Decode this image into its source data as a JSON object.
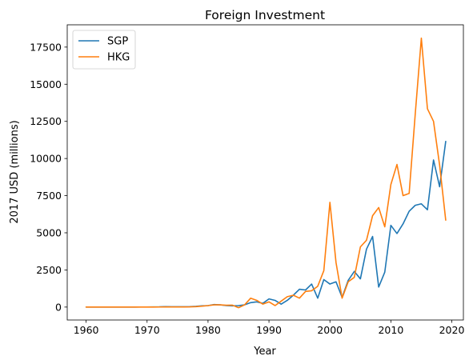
{
  "chart_data": {
    "type": "line",
    "title": "Foreign Investment",
    "xlabel": "Year",
    "ylabel": "2017 USD (millions)",
    "xlim": [
      1956.9,
      2021.9
    ],
    "ylim": [
      -870,
      19000
    ],
    "x_ticks": [
      1960,
      1970,
      1980,
      1990,
      2000,
      2010,
      2020
    ],
    "y_ticks": [
      0,
      2500,
      5000,
      7500,
      10000,
      12500,
      15000,
      17500
    ],
    "grid": false,
    "legend_position": "top-left",
    "x": [
      1960,
      1961,
      1962,
      1963,
      1964,
      1965,
      1966,
      1967,
      1968,
      1969,
      1970,
      1971,
      1972,
      1973,
      1974,
      1975,
      1976,
      1977,
      1978,
      1979,
      1980,
      1981,
      1982,
      1983,
      1984,
      1985,
      1986,
      1987,
      1988,
      1989,
      1990,
      1991,
      1992,
      1993,
      1994,
      1995,
      1996,
      1997,
      1998,
      1999,
      2000,
      2001,
      2002,
      2003,
      2004,
      2005,
      2006,
      2007,
      2008,
      2009,
      2010,
      2011,
      2012,
      2013,
      2014,
      2015,
      2016,
      2017,
      2018,
      2019
    ],
    "series": [
      {
        "name": "SGP",
        "color": "#1f77b4",
        "values": [
          0,
          0,
          0,
          0,
          0,
          0,
          0,
          0,
          0,
          5,
          5,
          10,
          15,
          30,
          20,
          25,
          20,
          30,
          50,
          80,
          100,
          170,
          150,
          100,
          80,
          100,
          150,
          300,
          350,
          250,
          550,
          450,
          200,
          450,
          800,
          1200,
          1150,
          1550,
          600,
          1850,
          1550,
          1700,
          650,
          1800,
          2400,
          1900,
          3900,
          4750,
          1350,
          2350,
          5500,
          4950,
          5600,
          6450,
          6850,
          6950,
          6550,
          9900,
          8100,
          11150
        ]
      },
      {
        "name": "HKG",
        "color": "#ff7f0e",
        "values": [
          0,
          0,
          0,
          0,
          0,
          0,
          0,
          0,
          0,
          0,
          0,
          0,
          5,
          10,
          10,
          10,
          10,
          15,
          30,
          60,
          100,
          150,
          150,
          120,
          130,
          -40,
          150,
          600,
          450,
          200,
          350,
          100,
          400,
          700,
          800,
          600,
          1050,
          1100,
          1400,
          2450,
          7050,
          3000,
          600,
          1700,
          2000,
          4050,
          4500,
          6150,
          6700,
          5400,
          8250,
          9600,
          7500,
          7650,
          13000,
          18100,
          13350,
          12500,
          9550,
          5850
        ]
      }
    ]
  }
}
